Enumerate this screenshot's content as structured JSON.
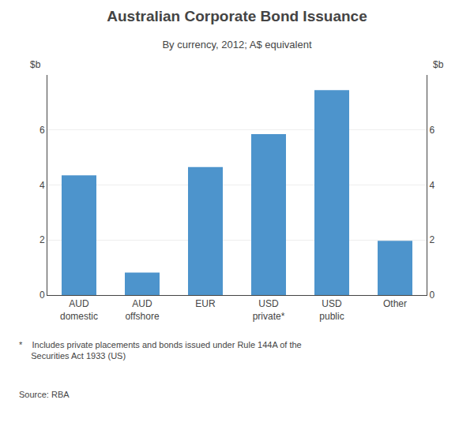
{
  "chart_data": {
    "type": "bar",
    "title": "Australian Corporate Bond Issuance",
    "subtitle": "By currency, 2012; A$ equivalent",
    "ylabel": "$b",
    "y2label": "$b",
    "categories": [
      "AUD\ndomestic",
      "AUD\noffshore",
      "EUR",
      "USD\nprivate*",
      "USD\npublic",
      "Other"
    ],
    "values": [
      4.35,
      0.82,
      4.65,
      5.85,
      7.45,
      1.97
    ],
    "color": "#4d94cc",
    "ylim": [
      0,
      8
    ],
    "yticks": [
      0,
      2,
      4,
      6
    ],
    "y2lim": [
      0,
      8
    ],
    "y2ticks": [
      0,
      2,
      4,
      6
    ],
    "grid": true,
    "annotations": [
      "*    Includes private placements and bonds issued under Rule 144A of the\n     Securities Act 1933 (US)",
      "Source: RBA"
    ]
  }
}
